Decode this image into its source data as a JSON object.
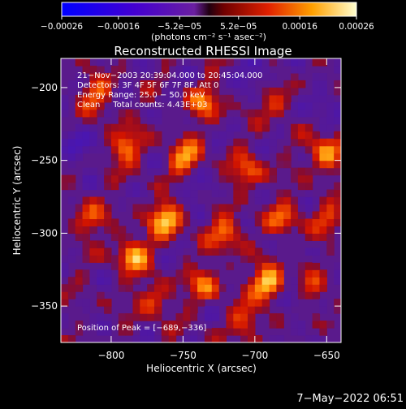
{
  "chart_data": {
    "type": "heatmap",
    "title": "Reconstructed RHESSI Image",
    "xlabel": "Heliocentric X (arcsec)",
    "ylabel": "Heliocentric Y (arcsec)",
    "xlim": [
      -835,
      -640
    ],
    "ylim": [
      -375,
      -180
    ],
    "x_ticks": [
      -800,
      -750,
      -700,
      -650
    ],
    "x_tick_labels": [
      "−800",
      "−750",
      "−700",
      "−650"
    ],
    "y_ticks": [
      -200,
      -250,
      -300,
      -350
    ],
    "y_tick_labels": [
      "−200",
      "−250",
      "−300",
      "−350"
    ],
    "colorbar": {
      "range": [
        -0.00026,
        0.00026
      ],
      "ticks": [
        -0.00026,
        -0.00016,
        -5.2e-05,
        5.2e-05,
        0.00016,
        0.00026
      ],
      "tick_labels": [
        "−0.00026",
        "−0.00016",
        "−5.2e−05",
        "5.2e−05",
        "0.00016",
        "0.00026"
      ],
      "unit_label": "(photons cm⁻² s⁻¹ asec⁻²)"
    },
    "annotations": [
      "21−Nov−2003 20:39:04.000 to 20:45:04.000",
      "Detectors: 3F 4F 5F 6F 7F 8F, Att 0",
      "Energy Range: 25.0 − 50.0 keV",
      "Clean     Total counts: 4.43E+03"
    ],
    "peak_label": "Position of Peak = [−689,−336]",
    "peak_position": [
      -689,
      -336
    ],
    "hot_spots": [
      {
        "x": -690,
        "y": -335,
        "value": 0.00026
      },
      {
        "x": -762,
        "y": -290,
        "value": 0.00022
      },
      {
        "x": -785,
        "y": -315,
        "value": 0.0002
      },
      {
        "x": -748,
        "y": -248,
        "value": 0.00018
      },
      {
        "x": -650,
        "y": -245,
        "value": 0.00019
      },
      {
        "x": -790,
        "y": -240,
        "value": 0.00016
      },
      {
        "x": -735,
        "y": -210,
        "value": 0.00015
      },
      {
        "x": -720,
        "y": -300,
        "value": 0.00016
      },
      {
        "x": -705,
        "y": -258,
        "value": 0.00014
      },
      {
        "x": -680,
        "y": -290,
        "value": 0.00013
      },
      {
        "x": -810,
        "y": -205,
        "value": 0.00013
      },
      {
        "x": -770,
        "y": -345,
        "value": 0.00012
      },
      {
        "x": -735,
        "y": -335,
        "value": 0.00014
      },
      {
        "x": -660,
        "y": -340,
        "value": 0.00011
      },
      {
        "x": -685,
        "y": -210,
        "value": 0.0001
      },
      {
        "x": -815,
        "y": -290,
        "value": 0.00012
      },
      {
        "x": -650,
        "y": -290,
        "value": 0.0001
      },
      {
        "x": -705,
        "y": -360,
        "value": 0.00012
      }
    ],
    "cold_spots": [
      {
        "x": -825,
        "y": -240,
        "value": -0.00012
      },
      {
        "x": -675,
        "y": -345,
        "value": -0.00012
      },
      {
        "x": -655,
        "y": -210,
        "value": -9e-05
      },
      {
        "x": -700,
        "y": -190,
        "value": -0.0001
      },
      {
        "x": -740,
        "y": -270,
        "value": -7e-05
      }
    ]
  },
  "footer": {
    "timestamp": "7−May−2022 06:51"
  }
}
